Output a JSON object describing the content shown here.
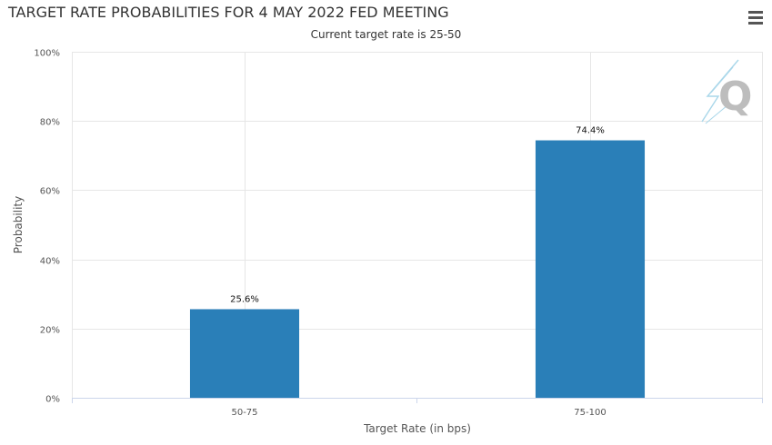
{
  "title": "TARGET RATE PROBABILITIES FOR 4 MAY 2022 FED MEETING",
  "subtitle": "Current target rate is 25-50",
  "menu_icon": "hamburger-menu-icon",
  "watermark_icon": "q-logo-watermark-icon",
  "colors": {
    "bar": "#2a7fb8",
    "grid": "#e6e6e6",
    "axis": "#ccd6eb",
    "watermark": "#a9d7ea"
  },
  "chart_data": {
    "type": "bar",
    "categories": [
      "50-75",
      "75-100"
    ],
    "values": [
      25.6,
      74.4
    ],
    "data_labels": [
      "25.6%",
      "74.4%"
    ],
    "xlabel": "Target Rate (in bps)",
    "ylabel": "Probability",
    "ylim": [
      0,
      100
    ],
    "yticks": [
      0,
      20,
      40,
      60,
      80,
      100
    ],
    "ytick_labels": [
      "0%",
      "20%",
      "40%",
      "60%",
      "80%",
      "100%"
    ],
    "grid": true,
    "legend": "none"
  }
}
